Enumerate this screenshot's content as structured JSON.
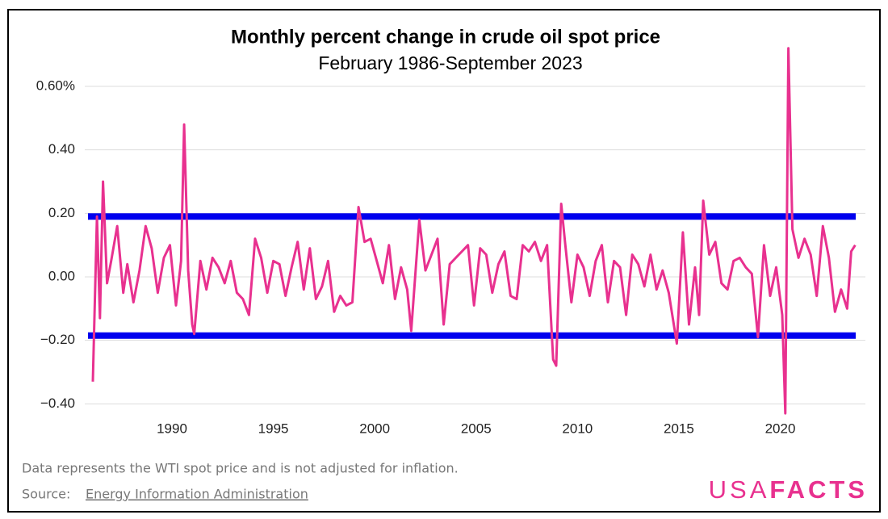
{
  "chart_data": {
    "type": "line",
    "title": "Monthly percent change in crude oil spot price",
    "subtitle": "February 1986-September 2023",
    "note": "Data represents the WTI spot price and is not adjusted for inflation.",
    "source_label": "Source:",
    "source": "Energy Information Administration",
    "logo": [
      "USA",
      "FACTS"
    ],
    "xlim": [
      1985.7,
      2024.2
    ],
    "xticks": [
      1990,
      1995,
      2000,
      2005,
      2010,
      2015,
      2020
    ],
    "ylim": [
      -0.45,
      0.75
    ],
    "yticks": [
      {
        "value": -0.4,
        "label": "−0.40"
      },
      {
        "value": -0.2,
        "label": "−0.20"
      },
      {
        "value": 0,
        "label": "0.00"
      },
      {
        "value": 0.2,
        "label": "0.20"
      },
      {
        "value": 0.4,
        "label": "0.40"
      },
      {
        "value": 0.6,
        "label": "0.60%"
      }
    ],
    "grid": true,
    "reference_lines": [
      {
        "value": 0.19,
        "color": "#0000ee"
      },
      {
        "value": -0.185,
        "color": "#0000ee"
      }
    ],
    "series": [
      {
        "color": "#e8318f",
        "x": [
          1986.1,
          1986.3,
          1986.45,
          1986.6,
          1986.8,
          1987.0,
          1987.3,
          1987.6,
          1987.8,
          1988.1,
          1988.4,
          1988.7,
          1989.0,
          1989.3,
          1989.6,
          1989.9,
          1990.2,
          1990.45,
          1990.6,
          1990.8,
          1991.0,
          1991.1,
          1991.4,
          1991.7,
          1992.0,
          1992.3,
          1992.6,
          1992.9,
          1993.2,
          1993.5,
          1993.8,
          1994.1,
          1994.4,
          1994.7,
          1995.0,
          1995.3,
          1995.6,
          1995.9,
          1996.2,
          1996.5,
          1996.8,
          1997.1,
          1997.4,
          1997.7,
          1998.0,
          1998.3,
          1998.6,
          1998.9,
          1999.2,
          1999.5,
          1999.8,
          2000.1,
          2000.4,
          2000.7,
          2001.0,
          2001.3,
          2001.6,
          2001.8,
          2002.2,
          2002.5,
          2002.8,
          2003.1,
          2003.4,
          2003.7,
          2004.0,
          2004.3,
          2004.6,
          2004.9,
          2005.2,
          2005.5,
          2005.8,
          2006.1,
          2006.4,
          2006.7,
          2007.0,
          2007.3,
          2007.6,
          2007.9,
          2008.2,
          2008.5,
          2008.8,
          2008.95,
          2009.2,
          2009.4,
          2009.7,
          2010.0,
          2010.3,
          2010.6,
          2010.9,
          2011.2,
          2011.5,
          2011.8,
          2012.1,
          2012.4,
          2012.7,
          2013.0,
          2013.3,
          2013.6,
          2013.9,
          2014.2,
          2014.5,
          2014.9,
          2015.2,
          2015.5,
          2015.8,
          2016.0,
          2016.2,
          2016.5,
          2016.8,
          2017.1,
          2017.4,
          2017.7,
          2018.0,
          2018.3,
          2018.6,
          2018.9,
          2019.2,
          2019.5,
          2019.8,
          2020.1,
          2020.25,
          2020.4,
          2020.6,
          2020.9,
          2021.2,
          2021.5,
          2021.8,
          2022.1,
          2022.4,
          2022.7,
          2023.0,
          2023.3,
          2023.5,
          2023.7
        ],
        "values": [
          -0.33,
          0.19,
          -0.13,
          0.3,
          -0.02,
          0.05,
          0.16,
          -0.05,
          0.04,
          -0.08,
          0.02,
          0.16,
          0.09,
          -0.05,
          0.06,
          0.1,
          -0.09,
          0.05,
          0.48,
          0.02,
          -0.15,
          -0.18,
          0.05,
          -0.04,
          0.06,
          0.03,
          -0.02,
          0.05,
          -0.05,
          -0.07,
          -0.12,
          0.12,
          0.06,
          -0.05,
          0.05,
          0.04,
          -0.06,
          0.03,
          0.11,
          -0.04,
          0.09,
          -0.07,
          -0.03,
          0.05,
          -0.11,
          -0.06,
          -0.09,
          -0.08,
          0.22,
          0.11,
          0.12,
          0.05,
          -0.02,
          0.1,
          -0.07,
          0.03,
          -0.04,
          -0.17,
          0.18,
          0.02,
          0.07,
          0.12,
          -0.15,
          0.04,
          0.06,
          0.08,
          0.1,
          -0.09,
          0.09,
          0.07,
          -0.05,
          0.04,
          0.08,
          -0.06,
          -0.07,
          0.1,
          0.08,
          0.11,
          0.05,
          0.1,
          -0.26,
          -0.28,
          0.23,
          0.1,
          -0.08,
          0.07,
          0.03,
          -0.06,
          0.05,
          0.1,
          -0.08,
          0.05,
          0.03,
          -0.12,
          0.07,
          0.04,
          -0.03,
          0.07,
          -0.04,
          0.02,
          -0.05,
          -0.21,
          0.14,
          -0.15,
          0.03,
          -0.12,
          0.24,
          0.07,
          0.11,
          -0.02,
          -0.04,
          0.05,
          0.06,
          0.03,
          0.01,
          -0.19,
          0.1,
          -0.06,
          0.03,
          -0.12,
          -0.43,
          0.72,
          0.15,
          0.06,
          0.12,
          0.07,
          -0.06,
          0.16,
          0.06,
          -0.11,
          -0.04,
          -0.1,
          0.08,
          0.1
        ]
      }
    ]
  }
}
